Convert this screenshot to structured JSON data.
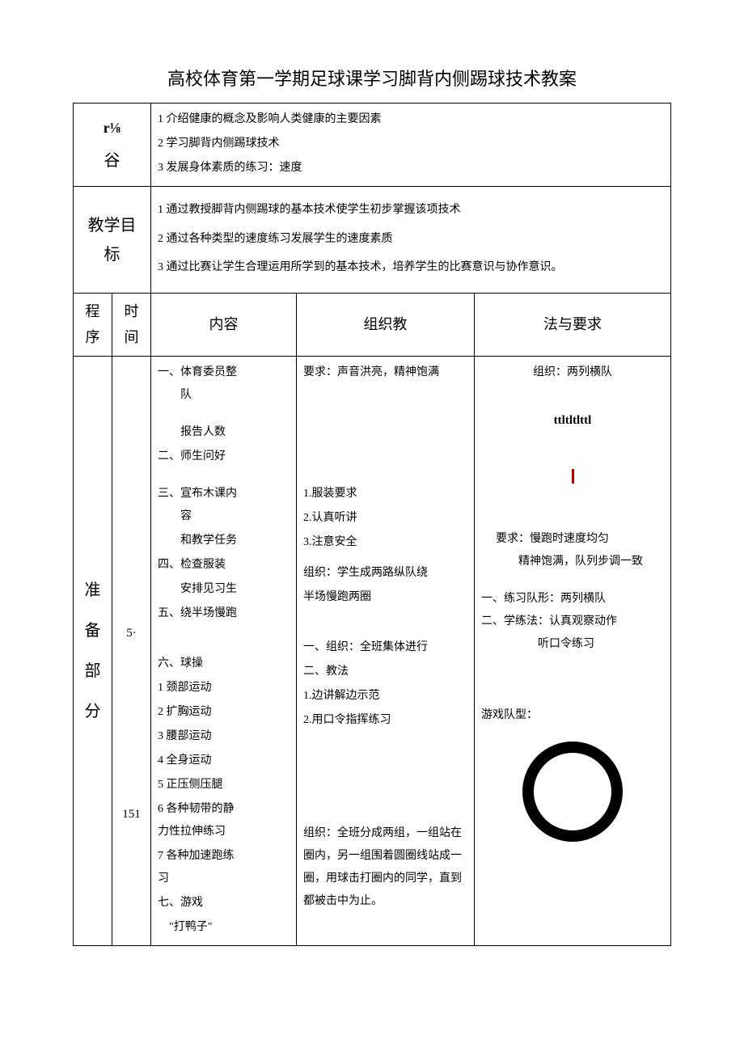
{
  "title": "高校体育第一学期足球课学习脚背内侧踢球技术教案",
  "row1": {
    "label1": "r⅛",
    "label2": "谷",
    "content": [
      "1 介绍健康的概念及影响人类健康的主要因素",
      "2 学习脚背内侧踢球技术",
      "3 发展身体素质的练习：速度"
    ]
  },
  "row2": {
    "label": "教学目标",
    "content": [
      "1 通过教授脚背内侧踢球的基本技术使学生初步掌握该项技术",
      "2 通过各种类型的速度练习发展学生的速度素质",
      "3 通过比赛让学生合理运用所学到的基本技术，培养学生的比赛意识与协作意识。"
    ]
  },
  "headers": {
    "col1": "程序",
    "col2": "时间",
    "col3": "内容",
    "col4": "组织教",
    "col5": "法与要求"
  },
  "section": {
    "label": "准备部分",
    "times": [
      "5·",
      "151"
    ],
    "contentCol": {
      "items": [
        "一、体育委员整队",
        "　　报告人数",
        "二、师生问好",
        "",
        "三、宣布木课内容",
        "　　和教学任务",
        "四、检查服装",
        "　　安排见习生",
        "五、绕半场慢跑",
        "",
        "",
        "六、球操",
        "1 颈部运动",
        "2 扩胸运动",
        "3 腰部运动",
        "4 全身运动",
        "5 正压侧压腿",
        "6 各种韧带的静力性拉伸练习",
        "7 各种加速跑练习",
        "",
        "七、游戏",
        "　　\"打鸭子\""
      ]
    },
    "orgCol": {
      "items": [
        "要求：声音洪亮，精神饱满",
        "",
        "",
        "",
        "",
        "1.服装要求",
        "2.认真听讲",
        "3.注意安全",
        "",
        "组织：学生成两路纵队绕",
        "半场慢跑两圈",
        "",
        "",
        "一、组织：全班集体进行",
        "二、教法",
        "1.边讲解边示范",
        "2.用口令指挥练习",
        "",
        "",
        "",
        "",
        "组织：全班分成两组，一组站在圈内，另一组围着圆圈线站成一圈，用球击打圈内的同学，直到都被击中为止。"
      ]
    },
    "reqCol": {
      "org1": "组织：两列横队",
      "symbol": "ttltltlttl",
      "req1": "要求：慢跑时速度均匀",
      "req2": "　　精神饱满，队列步调一致",
      "ex1": "一、练习队形：两列横队",
      "ex2": "二、学练法：认真观察动作",
      "ex3": "　　　　　听口令练习",
      "game": "游戏队型："
    }
  },
  "colors": {
    "text": "#000000",
    "bg": "#ffffff",
    "border": "#000000",
    "red": "#c00000"
  },
  "circle": {
    "stroke": "#000000",
    "strokeWidth": 14,
    "radius": 55,
    "size": 140
  }
}
